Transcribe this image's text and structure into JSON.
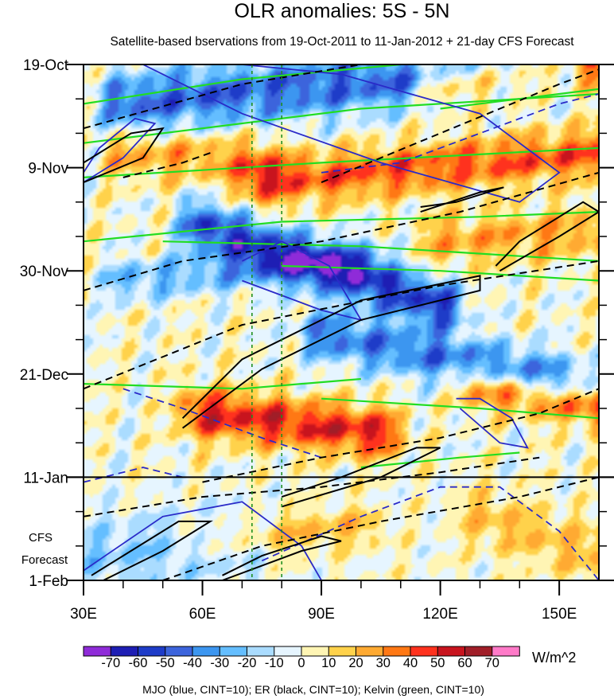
{
  "chart_data": {
    "type": "heatmap",
    "title": "OLR anomalies: 5S - 5N",
    "subtitle": "Satellite-based bservations from 19-Oct-2011 to 11-Jan-2012 + 21-day CFS Forecast",
    "x_axis": {
      "range": [
        30,
        160
      ],
      "ticks": [
        30,
        60,
        90,
        120,
        150
      ],
      "tick_labels": [
        "30E",
        "60E",
        "90E",
        "120E",
        "150E"
      ]
    },
    "y_axis": {
      "range_days": [
        0,
        105
      ],
      "ticks_days": [
        0,
        21,
        42,
        63,
        84,
        105
      ],
      "tick_labels": [
        "19-Oct",
        "9-Nov",
        "30-Nov",
        "21-Dec",
        "11-Jan",
        "1-Feb"
      ],
      "forecast_label_lines": [
        "CFS",
        "Forecast"
      ],
      "forecast_start_day": 84
    },
    "reference_lines_lon": [
      72.5,
      80
    ],
    "colorbar": {
      "levels": [
        -70,
        -60,
        -50,
        -40,
        -30,
        -20,
        -10,
        0,
        10,
        20,
        30,
        40,
        50,
        60,
        70
      ],
      "labels": [
        "-70",
        "-60",
        "-50",
        "-40",
        "-30",
        "-20",
        "-10",
        "0",
        "10",
        "20",
        "30",
        "40",
        "50",
        "60",
        "70"
      ],
      "colors": [
        "#8f2bd8",
        "#1e1eb4",
        "#1e3cc8",
        "#3c64dc",
        "#3c96f0",
        "#64beff",
        "#aadcff",
        "#e6f5ff",
        "#fff5b4",
        "#ffd24b",
        "#ffaa32",
        "#ff7814",
        "#ff321e",
        "#c8141e",
        "#a01e28",
        "#ff7ac8"
      ],
      "units": "W/m^2"
    },
    "anomaly_features": [
      {
        "lon0": 40,
        "day0": 8,
        "lon1": 150,
        "day1": 0,
        "amp": -45,
        "w": 6
      },
      {
        "lon0": 60,
        "day0": 33,
        "lon1": 120,
        "day1": 49,
        "amp": -55,
        "w": 5
      },
      {
        "lon0": 90,
        "day0": 55,
        "lon1": 150,
        "day1": 64,
        "amp": -40,
        "w": 5
      },
      {
        "lon0": 40,
        "day0": 44,
        "lon1": 100,
        "day1": 40,
        "amp": -25,
        "w": 4
      },
      {
        "lon0": 30,
        "day0": 100,
        "lon1": 70,
        "day1": 98,
        "amp": -25,
        "w": 8
      },
      {
        "lon0": 40,
        "day0": 18,
        "lon1": 75,
        "day1": 20,
        "amp": 25,
        "w": 5
      },
      {
        "lon0": 75,
        "day0": 24,
        "lon1": 160,
        "day1": 18,
        "amp": 40,
        "w": 5
      },
      {
        "lon0": 120,
        "day0": 4,
        "lon1": 160,
        "day1": 0,
        "amp": 45,
        "w": 5
      },
      {
        "lon0": 60,
        "day0": 71,
        "lon1": 105,
        "day1": 75,
        "amp": 50,
        "w": 5
      },
      {
        "lon0": 130,
        "day0": 66,
        "lon1": 160,
        "day1": 70,
        "amp": 40,
        "w": 4
      },
      {
        "lon0": 120,
        "day0": 36,
        "lon1": 160,
        "day1": 34,
        "amp": 25,
        "w": 5
      },
      {
        "lon0": 60,
        "day0": 97,
        "lon1": 100,
        "day1": 94,
        "amp": 25,
        "w": 4
      },
      {
        "lon0": 130,
        "day0": 92,
        "lon1": 160,
        "day1": 100,
        "amp": 25,
        "w": 6
      }
    ],
    "mjo_contours": [
      {
        "style": "solid",
        "points": [
          [
            45,
            0
          ],
          [
            70,
            10
          ],
          [
            105,
            20
          ],
          [
            140,
            28
          ],
          [
            150,
            22
          ],
          [
            130,
            10
          ],
          [
            95,
            2
          ],
          [
            70,
            0
          ]
        ]
      },
      {
        "style": "solid",
        "points": [
          [
            30,
            24
          ],
          [
            40,
            19
          ],
          [
            48,
            12
          ],
          [
            43,
            11
          ],
          [
            34,
            17
          ],
          [
            30,
            22
          ]
        ]
      },
      {
        "style": "solid",
        "points": [
          [
            70,
            44
          ],
          [
            90,
            50
          ],
          [
            100,
            52
          ],
          [
            92,
            41
          ],
          [
            80,
            36
          ],
          [
            70,
            40
          ]
        ]
      },
      {
        "style": "solid",
        "points": [
          [
            125,
            70
          ],
          [
            135,
            77
          ],
          [
            142,
            78
          ],
          [
            138,
            72
          ],
          [
            130,
            68
          ],
          [
            124,
            68
          ]
        ]
      },
      {
        "style": "solid",
        "points": [
          [
            30,
            103
          ],
          [
            50,
            92
          ],
          [
            70,
            89
          ],
          [
            85,
            98
          ],
          [
            90,
            105
          ]
        ]
      },
      {
        "style": "dashed",
        "points": [
          [
            90,
            22
          ],
          [
            110,
            20
          ],
          [
            130,
            14
          ],
          [
            150,
            8
          ],
          [
            160,
            6
          ]
        ]
      },
      {
        "style": "dashed",
        "points": [
          [
            40,
            66
          ],
          [
            55,
            70
          ],
          [
            75,
            76
          ],
          [
            90,
            80
          ]
        ]
      },
      {
        "style": "dashed",
        "points": [
          [
            75,
            101
          ],
          [
            100,
            92
          ],
          [
            120,
            86
          ],
          [
            135,
            86
          ],
          [
            150,
            95
          ],
          [
            160,
            105
          ]
        ]
      },
      {
        "style": "dashed",
        "points": [
          [
            30,
            85
          ],
          [
            45,
            82
          ],
          [
            55,
            84
          ]
        ]
      }
    ],
    "er_contours": [
      {
        "style": "dashed",
        "points": [
          [
            30,
            13
          ],
          [
            70,
            4
          ],
          [
            100,
            0
          ]
        ]
      },
      {
        "style": "solid",
        "points": [
          [
            30,
            24
          ],
          [
            45,
            19
          ],
          [
            50,
            13
          ],
          [
            42,
            14
          ],
          [
            30,
            20
          ]
        ]
      },
      {
        "style": "dashed",
        "points": [
          [
            40,
            23
          ],
          [
            55,
            20
          ],
          [
            62,
            18
          ]
        ]
      },
      {
        "style": "dashed",
        "points": [
          [
            90,
            24
          ],
          [
            120,
            14
          ],
          [
            150,
            4
          ],
          [
            160,
            1
          ]
        ]
      },
      {
        "style": "solid",
        "points": [
          [
            115,
            30
          ],
          [
            130,
            26
          ],
          [
            136,
            25
          ],
          [
            124,
            28
          ],
          [
            115,
            29
          ]
        ]
      },
      {
        "style": "solid",
        "points": [
          [
            135,
            42
          ],
          [
            150,
            35
          ],
          [
            160,
            30
          ],
          [
            156,
            28
          ],
          [
            140,
            36
          ],
          [
            134,
            41
          ]
        ]
      },
      {
        "style": "dashed",
        "points": [
          [
            30,
            46
          ],
          [
            55,
            40
          ],
          [
            90,
            36
          ],
          [
            125,
            30
          ],
          [
            160,
            22
          ]
        ]
      },
      {
        "style": "dashed",
        "points": [
          [
            30,
            66
          ],
          [
            70,
            53
          ],
          [
            120,
            45
          ],
          [
            160,
            40
          ]
        ]
      },
      {
        "style": "solid",
        "points": [
          [
            55,
            74
          ],
          [
            75,
            62
          ],
          [
            100,
            52
          ],
          [
            130,
            46
          ],
          [
            130,
            43
          ],
          [
            100,
            48
          ],
          [
            70,
            60
          ],
          [
            55,
            72
          ]
        ]
      },
      {
        "style": "solid",
        "points": [
          [
            80,
            90
          ],
          [
            105,
            84
          ],
          [
            120,
            78
          ],
          [
            114,
            78
          ],
          [
            95,
            84
          ],
          [
            80,
            88
          ]
        ]
      },
      {
        "style": "dashed",
        "points": [
          [
            60,
            85
          ],
          [
            90,
            80
          ],
          [
            120,
            76
          ],
          [
            145,
            71
          ],
          [
            160,
            66
          ]
        ]
      },
      {
        "style": "dashed",
        "points": [
          [
            30,
            92
          ],
          [
            60,
            88
          ],
          [
            90,
            86
          ],
          [
            120,
            83
          ],
          [
            145,
            80
          ]
        ]
      },
      {
        "style": "solid",
        "points": [
          [
            35,
            105
          ],
          [
            50,
            99
          ],
          [
            62,
            93
          ],
          [
            54,
            93
          ],
          [
            40,
            100
          ],
          [
            32,
            104
          ]
        ]
      },
      {
        "style": "solid",
        "points": [
          [
            65,
            105
          ],
          [
            85,
            99
          ],
          [
            95,
            97
          ],
          [
            90,
            96
          ],
          [
            75,
            100
          ],
          [
            65,
            104
          ]
        ]
      },
      {
        "style": "dashed",
        "points": [
          [
            50,
            105
          ],
          [
            75,
            98
          ],
          [
            105,
            93
          ],
          [
            140,
            88
          ],
          [
            160,
            84
          ]
        ]
      }
    ],
    "kelvin_contours": [
      {
        "points": [
          [
            30,
            8
          ],
          [
            70,
            3
          ],
          [
            110,
            0
          ]
        ]
      },
      {
        "points": [
          [
            30,
            16
          ],
          [
            100,
            9
          ],
          [
            160,
            6
          ]
        ]
      },
      {
        "points": [
          [
            30,
            23
          ],
          [
            90,
            20
          ],
          [
            160,
            17
          ]
        ]
      },
      {
        "points": [
          [
            30,
            36
          ],
          [
            80,
            32
          ],
          [
            130,
            31
          ],
          [
            160,
            30
          ]
        ]
      },
      {
        "points": [
          [
            50,
            36
          ],
          [
            100,
            37
          ],
          [
            160,
            40
          ]
        ]
      },
      {
        "points": [
          [
            80,
            41
          ],
          [
            120,
            42
          ],
          [
            160,
            44
          ]
        ]
      },
      {
        "points": [
          [
            30,
            65
          ],
          [
            70,
            66
          ],
          [
            100,
            64
          ]
        ]
      },
      {
        "points": [
          [
            90,
            68
          ],
          [
            130,
            70
          ],
          [
            160,
            72
          ]
        ]
      },
      {
        "points": [
          [
            100,
            82
          ],
          [
            125,
            80
          ],
          [
            140,
            79
          ]
        ]
      },
      {
        "points": [
          [
            120,
            9
          ],
          [
            150,
            6
          ],
          [
            160,
            5
          ]
        ]
      }
    ],
    "footer": "MJO (blue, CINT=10); ER (black, CINT=10); Kelvin (green, CINT=10)"
  }
}
